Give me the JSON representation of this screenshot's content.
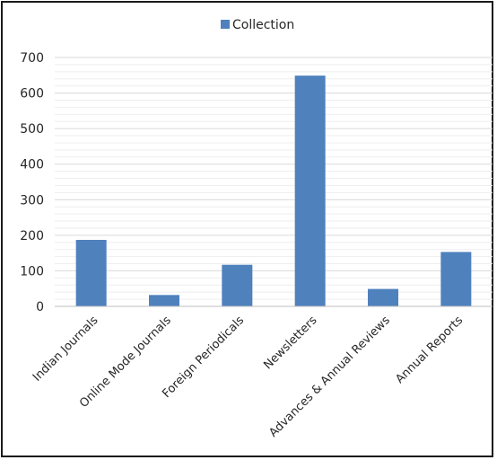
{
  "chart_data": {
    "type": "bar",
    "title": "",
    "xlabel": "",
    "ylabel": "",
    "categories": [
      "Indian Journals",
      "Online Mode Journals",
      "Foreign Periodicals",
      "Newsletters",
      "Advances & Annual Reviews",
      "Annual Reports"
    ],
    "series": [
      {
        "name": "Collection",
        "values": [
          187,
          32,
          117,
          649,
          49,
          153
        ],
        "color": "#4f81bd"
      }
    ],
    "ylim": [
      0,
      700
    ],
    "yticks": [
      0,
      100,
      200,
      300,
      400,
      500,
      600,
      700
    ],
    "legend_position": "top-center",
    "grid": true,
    "gridline_color": "#d9d9d9"
  }
}
